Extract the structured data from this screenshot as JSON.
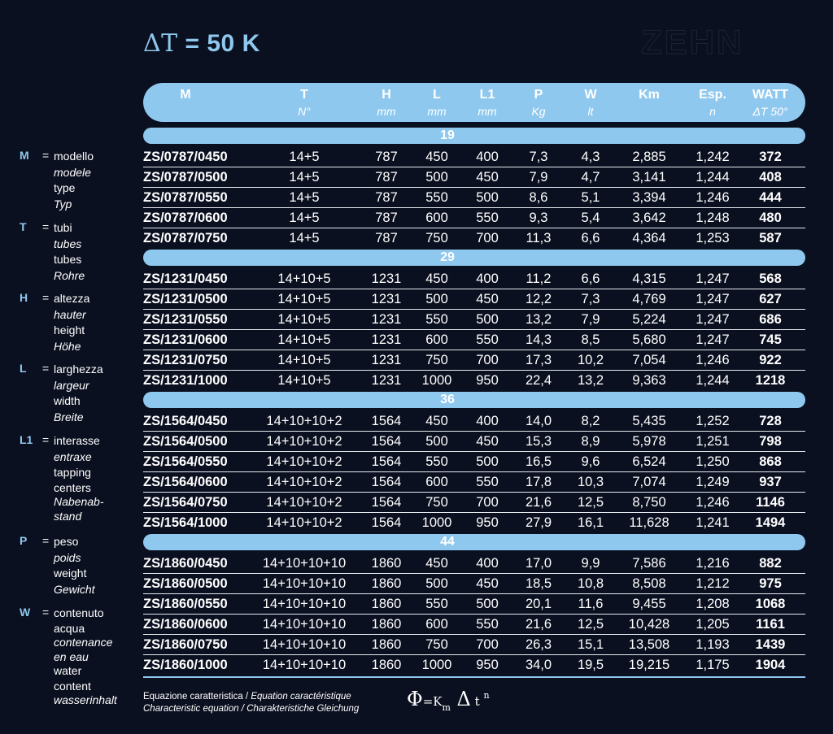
{
  "title": {
    "delta": "ΔT",
    "rest": " = 50 K"
  },
  "brand": "ZEHN",
  "headers": [
    {
      "top": "M",
      "bottom": ""
    },
    {
      "top": "T",
      "bottom": "N°"
    },
    {
      "top": "H",
      "bottom": "mm"
    },
    {
      "top": "L",
      "bottom": "mm"
    },
    {
      "top": "L1",
      "bottom": "mm"
    },
    {
      "top": "P",
      "bottom": "Kg"
    },
    {
      "top": "W",
      "bottom": "lt"
    },
    {
      "top": "Km",
      "bottom": ""
    },
    {
      "top": "Esp.",
      "bottom": "n"
    },
    {
      "top": "WATT",
      "bottom": "ΔT 50°"
    }
  ],
  "groups": [
    {
      "label": "19",
      "rows": [
        [
          "ZS/0787/0450",
          "14+5",
          "787",
          "450",
          "400",
          "7,3",
          "4,3",
          "2,885",
          "1,242",
          "372"
        ],
        [
          "ZS/0787/0500",
          "14+5",
          "787",
          "500",
          "450",
          "7,9",
          "4,7",
          "3,141",
          "1,244",
          "408"
        ],
        [
          "ZS/0787/0550",
          "14+5",
          "787",
          "550",
          "500",
          "8,6",
          "5,1",
          "3,394",
          "1,246",
          "444"
        ],
        [
          "ZS/0787/0600",
          "14+5",
          "787",
          "600",
          "550",
          "9,3",
          "5,4",
          "3,642",
          "1,248",
          "480"
        ],
        [
          "ZS/0787/0750",
          "14+5",
          "787",
          "750",
          "700",
          "11,3",
          "6,6",
          "4,364",
          "1,253",
          "587"
        ]
      ]
    },
    {
      "label": "29",
      "rows": [
        [
          "ZS/1231/0450",
          "14+10+5",
          "1231",
          "450",
          "400",
          "11,2",
          "6,6",
          "4,315",
          "1,247",
          "568"
        ],
        [
          "ZS/1231/0500",
          "14+10+5",
          "1231",
          "500",
          "450",
          "12,2",
          "7,3",
          "4,769",
          "1,247",
          "627"
        ],
        [
          "ZS/1231/0550",
          "14+10+5",
          "1231",
          "550",
          "500",
          "13,2",
          "7,9",
          "5,224",
          "1,247",
          "686"
        ],
        [
          "ZS/1231/0600",
          "14+10+5",
          "1231",
          "600",
          "550",
          "14,3",
          "8,5",
          "5,680",
          "1,247",
          "745"
        ],
        [
          "ZS/1231/0750",
          "14+10+5",
          "1231",
          "750",
          "700",
          "17,3",
          "10,2",
          "7,054",
          "1,246",
          "922"
        ],
        [
          "ZS/1231/1000",
          "14+10+5",
          "1231",
          "1000",
          "950",
          "22,4",
          "13,2",
          "9,363",
          "1,244",
          "1218"
        ]
      ]
    },
    {
      "label": "36",
      "rows": [
        [
          "ZS/1564/0450",
          "14+10+10+2",
          "1564",
          "450",
          "400",
          "14,0",
          "8,2",
          "5,435",
          "1,252",
          "728"
        ],
        [
          "ZS/1564/0500",
          "14+10+10+2",
          "1564",
          "500",
          "450",
          "15,3",
          "8,9",
          "5,978",
          "1,251",
          "798"
        ],
        [
          "ZS/1564/0550",
          "14+10+10+2",
          "1564",
          "550",
          "500",
          "16,5",
          "9,6",
          "6,524",
          "1,250",
          "868"
        ],
        [
          "ZS/1564/0600",
          "14+10+10+2",
          "1564",
          "600",
          "550",
          "17,8",
          "10,3",
          "7,074",
          "1,249",
          "937"
        ],
        [
          "ZS/1564/0750",
          "14+10+10+2",
          "1564",
          "750",
          "700",
          "21,6",
          "12,5",
          "8,750",
          "1,246",
          "1146"
        ],
        [
          "ZS/1564/1000",
          "14+10+10+2",
          "1564",
          "1000",
          "950",
          "27,9",
          "16,1",
          "11,628",
          "1,241",
          "1494"
        ]
      ]
    },
    {
      "label": "44",
      "rows": [
        [
          "ZS/1860/0450",
          "14+10+10+10",
          "1860",
          "450",
          "400",
          "17,0",
          "9,9",
          "7,586",
          "1,216",
          "882"
        ],
        [
          "ZS/1860/0500",
          "14+10+10+10",
          "1860",
          "500",
          "450",
          "18,5",
          "10,8",
          "8,508",
          "1,212",
          "975"
        ],
        [
          "ZS/1860/0550",
          "14+10+10+10",
          "1860",
          "550",
          "500",
          "20,1",
          "11,6",
          "9,455",
          "1,208",
          "1068"
        ],
        [
          "ZS/1860/0600",
          "14+10+10+10",
          "1860",
          "600",
          "550",
          "21,6",
          "12,5",
          "10,428",
          "1,205",
          "1161"
        ],
        [
          "ZS/1860/0750",
          "14+10+10+10",
          "1860",
          "750",
          "700",
          "26,3",
          "15,1",
          "13,508",
          "1,193",
          "1439"
        ],
        [
          "ZS/1860/1000",
          "14+10+10+10",
          "1860",
          "1000",
          "950",
          "34,0",
          "19,5",
          "19,215",
          "1,175",
          "1904"
        ]
      ]
    }
  ],
  "legend": [
    {
      "key": "M",
      "lines": [
        {
          "t": "modello",
          "i": false
        },
        {
          "t": "modele",
          "i": true
        },
        {
          "t": "type",
          "i": false
        },
        {
          "t": "Typ",
          "i": true
        }
      ]
    },
    {
      "key": "T",
      "lines": [
        {
          "t": "tubi",
          "i": false
        },
        {
          "t": "tubes",
          "i": true
        },
        {
          "t": "tubes",
          "i": false
        },
        {
          "t": "Rohre",
          "i": true
        }
      ]
    },
    {
      "key": "H",
      "lines": [
        {
          "t": "altezza",
          "i": false
        },
        {
          "t": "hauter",
          "i": true
        },
        {
          "t": "height",
          "i": false
        },
        {
          "t": "Höhe",
          "i": true
        }
      ]
    },
    {
      "key": "L",
      "lines": [
        {
          "t": "larghezza",
          "i": false
        },
        {
          "t": "largeur",
          "i": true
        },
        {
          "t": "width",
          "i": false
        },
        {
          "t": "Breite",
          "i": true
        }
      ]
    },
    {
      "key": "L1",
      "lines": [
        {
          "t": "interasse",
          "i": false
        },
        {
          "t": "entraxe",
          "i": true
        },
        {
          "t": "tapping",
          "i": false
        },
        {
          "t": "centers",
          "i": false,
          "tight": true
        },
        {
          "t": "Nabenab-",
          "i": true
        },
        {
          "t": "stand",
          "i": true,
          "tight": true
        }
      ]
    },
    {
      "key": "P",
      "lines": [
        {
          "t": "peso",
          "i": false
        },
        {
          "t": "poids",
          "i": true
        },
        {
          "t": "weight",
          "i": false
        },
        {
          "t": "Gewicht",
          "i": true
        }
      ]
    },
    {
      "key": "W",
      "lines": [
        {
          "t": "contenuto",
          "i": false
        },
        {
          "t": "acqua",
          "i": false,
          "tight": true
        },
        {
          "t": "contenance",
          "i": true
        },
        {
          "t": "en eau",
          "i": true,
          "tight": true
        },
        {
          "t": "water",
          "i": false
        },
        {
          "t": "content",
          "i": false,
          "tight": true
        },
        {
          "t": "wasserinhalt",
          "i": true
        }
      ]
    }
  ],
  "equation": {
    "line1_a": "Equazione caratteristica / ",
    "line1_b": "Equation caractéristique",
    "line2_a": "Characteristic equation / ",
    "line2_b": "Charakteristiche Gleichung",
    "phi": "Φ",
    "eq": "=K",
    "sub_m": "m",
    "delta": " Δ",
    "t": " t ",
    "sup_n": "n"
  }
}
